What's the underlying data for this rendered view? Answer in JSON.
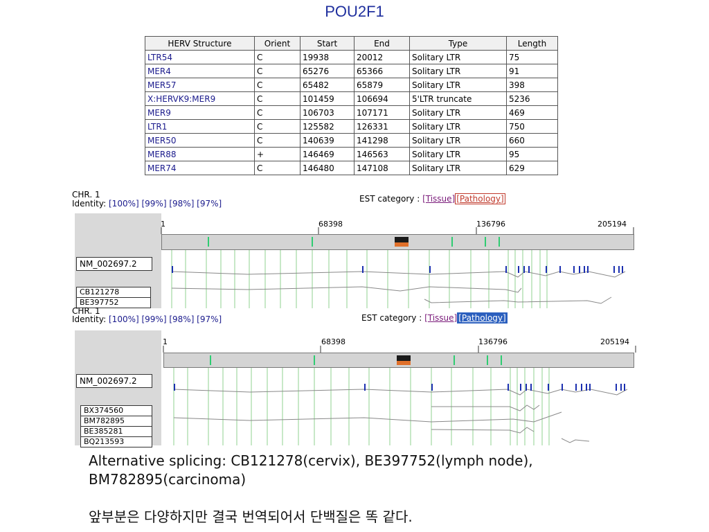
{
  "title": "POU2F1",
  "table": {
    "headers": [
      "HERV Structure",
      "Orient",
      "Start",
      "End",
      "Type",
      "Length"
    ],
    "rows": [
      [
        "LTR54",
        "C",
        "19938",
        "20012",
        "Solitary LTR",
        "75"
      ],
      [
        "MER4",
        "C",
        "65276",
        "65366",
        "Solitary LTR",
        "91"
      ],
      [
        "MER57",
        "C",
        "65482",
        "65879",
        "Solitary LTR",
        "398"
      ],
      [
        "X:HERVK9:MER9",
        "C",
        "101459",
        "106694",
        "5'LTR truncate",
        "5236"
      ],
      [
        "MER9",
        "C",
        "106703",
        "107171",
        "Solitary LTR",
        "469"
      ],
      [
        "LTR1",
        "C",
        "125582",
        "126331",
        "Solitary LTR",
        "750"
      ],
      [
        "MER50",
        "C",
        "140639",
        "141298",
        "Solitary LTR",
        "660"
      ],
      [
        "MER88",
        "+",
        "146469",
        "146563",
        "Solitary LTR",
        "95"
      ],
      [
        "MER74",
        "C",
        "146480",
        "147108",
        "Solitary LTR",
        "629"
      ]
    ]
  },
  "panel1": {
    "chr": "CHR. 1",
    "identity_prefix": "Identity:",
    "identity": "[100%] [99%] [98%] [97%]",
    "est_label": "EST category :",
    "tissue": "[Tissue]",
    "pathology": "[Pathology]",
    "scale": [
      "1",
      "68398",
      "136796",
      "205194"
    ],
    "reference": "NM_002697.2",
    "ests": [
      "CB121278",
      "BE397752"
    ]
  },
  "panel2": {
    "chr": "CHR. 1",
    "identity_prefix": "Identity:",
    "identity": "[100%] [99%] [98%] [97%]",
    "est_label": "EST category :",
    "tissue": "[Tissue]",
    "pathology": "[Pathology]",
    "scale": [
      "1",
      "68398",
      "136796",
      "205194"
    ],
    "reference": "NM_002697.2",
    "ests": [
      "BX374560",
      "BM782895",
      "BE385281",
      "BQ213593"
    ]
  },
  "notes": {
    "line1": "Alternative splicing: CB121278(cervix), BE397752(lymph node), BM782895(carcinoma)",
    "line2": "앞부분은 다양하지만 결국 번역되어서 단백질은 똑 같다."
  },
  "colors": {
    "title": "#1f2f9e",
    "grid_line": "#8fd08f",
    "exon": "#1b2fb0",
    "intron": "#888888",
    "herv_mark": "#2ecc71"
  }
}
